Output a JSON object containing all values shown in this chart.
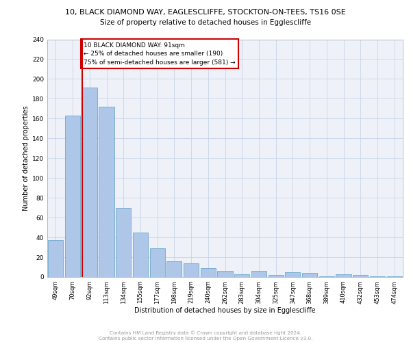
{
  "title1": "10, BLACK DIAMOND WAY, EAGLESCLIFFE, STOCKTON-ON-TEES, TS16 0SE",
  "title2": "Size of property relative to detached houses in Egglescliffe",
  "xlabel": "Distribution of detached houses by size in Egglescliffe",
  "ylabel": "Number of detached properties",
  "bar_labels": [
    "49sqm",
    "70sqm",
    "92sqm",
    "113sqm",
    "134sqm",
    "155sqm",
    "177sqm",
    "198sqm",
    "219sqm",
    "240sqm",
    "262sqm",
    "283sqm",
    "304sqm",
    "325sqm",
    "347sqm",
    "368sqm",
    "389sqm",
    "410sqm",
    "432sqm",
    "453sqm",
    "474sqm"
  ],
  "bar_values": [
    37,
    163,
    191,
    172,
    70,
    45,
    29,
    16,
    14,
    9,
    6,
    3,
    6,
    2,
    5,
    4,
    1,
    3,
    2,
    1,
    1
  ],
  "bar_color": "#aec6e8",
  "bar_edge_color": "#5a9ec8",
  "vline_x_idx": 2,
  "vline_color": "#cc0000",
  "annotation_lines": [
    "10 BLACK DIAMOND WAY: 91sqm",
    "← 25% of detached houses are smaller (190)",
    "75% of semi-detached houses are larger (581) →"
  ],
  "box_edge_color": "#cc0000",
  "ylim": [
    0,
    240
  ],
  "yticks": [
    0,
    20,
    40,
    60,
    80,
    100,
    120,
    140,
    160,
    180,
    200,
    220,
    240
  ],
  "footer": "Contains HM Land Registry data © Crown copyright and database right 2024.\nContains public sector information licensed under the Open Government Licence v3.0.",
  "bg_color": "#eef2f8",
  "grid_color": "#c8d4e8"
}
